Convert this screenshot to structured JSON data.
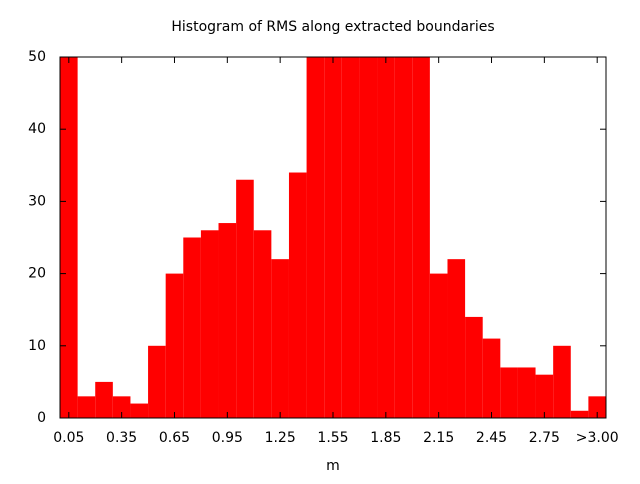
{
  "chart_data": {
    "type": "histogram",
    "title": "Histogram of RMS along extracted boundaries",
    "x_label": "m",
    "color": "#ff0000",
    "bins": [
      0,
      0.1,
      0.2,
      0.3,
      0.4,
      0.5,
      0.6,
      0.7,
      0.8,
      0.9,
      1.0,
      1.1,
      1.2,
      1.3,
      1.4,
      1.5,
      1.6,
      1.7,
      1.8,
      1.9,
      2.0,
      2.1,
      2.2,
      2.3,
      2.4,
      2.5,
      2.6,
      2.7,
      2.8,
      2.9,
      3.0,
      3.1
    ],
    "values": [
      50,
      3,
      5,
      3,
      2,
      10,
      20,
      25,
      26,
      27,
      33,
      26,
      22,
      34,
      50,
      50,
      50,
      50,
      50,
      50,
      50,
      20,
      22,
      14,
      11,
      7,
      7,
      6,
      10,
      1,
      3
    ],
    "xlim": [
      0,
      3.1
    ],
    "ylim": [
      0,
      50
    ],
    "xticks": [
      0.05,
      0.35,
      0.65,
      0.95,
      1.25,
      1.55,
      1.85,
      2.15,
      2.45,
      2.75,
      {
        "value": 3.05,
        "label": ">3.00"
      }
    ],
    "yticks": [
      0,
      10,
      20,
      30,
      40,
      50
    ]
  }
}
